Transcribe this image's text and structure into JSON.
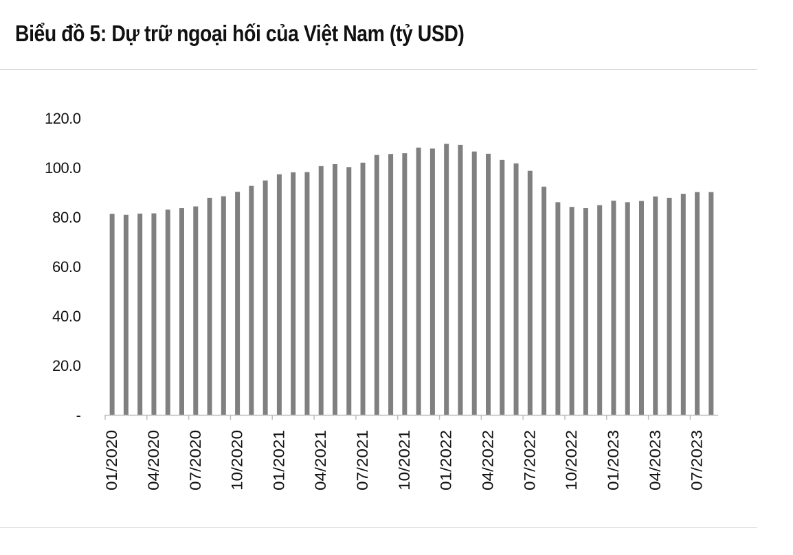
{
  "chart_data": {
    "type": "bar",
    "title": "Biểu đồ 5: Dự trữ ngoại hối của Việt Nam (tỷ USD)",
    "xlabel": "",
    "ylabel": "",
    "ylim": [
      0,
      120
    ],
    "yticks": [
      {
        "value": 0,
        "label": "-"
      },
      {
        "value": 20,
        "label": "20.0"
      },
      {
        "value": 40,
        "label": "40.0"
      },
      {
        "value": 60,
        "label": "60.0"
      },
      {
        "value": 80,
        "label": "80.0"
      },
      {
        "value": 100,
        "label": "100.0"
      },
      {
        "value": 120,
        "label": "120.0"
      }
    ],
    "grid": false,
    "legend": "none",
    "bar_color": "#808080",
    "categories": [
      "01/2020",
      "02/2020",
      "03/2020",
      "04/2020",
      "05/2020",
      "06/2020",
      "07/2020",
      "08/2020",
      "09/2020",
      "10/2020",
      "11/2020",
      "12/2020",
      "01/2021",
      "02/2021",
      "03/2021",
      "04/2021",
      "05/2021",
      "06/2021",
      "07/2021",
      "08/2021",
      "09/2021",
      "10/2021",
      "11/2021",
      "12/2021",
      "01/2022",
      "02/2022",
      "03/2022",
      "04/2022",
      "05/2022",
      "06/2022",
      "07/2022",
      "08/2022",
      "09/2022",
      "10/2022",
      "11/2022",
      "12/2022",
      "01/2023",
      "02/2023",
      "03/2023",
      "04/2023",
      "05/2023",
      "06/2023",
      "07/2023",
      "08/2023"
    ],
    "values": [
      81.3,
      80.9,
      81.4,
      81.5,
      83.0,
      83.6,
      84.3,
      87.8,
      88.4,
      90.2,
      92.6,
      94.8,
      97.3,
      98.1,
      98.2,
      100.6,
      101.4,
      100.2,
      102.0,
      105.1,
      105.5,
      105.8,
      108.1,
      107.7,
      109.6,
      109.2,
      106.5,
      105.6,
      103.1,
      101.7,
      98.7,
      92.3,
      86.0,
      84.1,
      83.6,
      84.8,
      86.6,
      86.0,
      86.5,
      88.3,
      87.8,
      89.4,
      90.1,
      90.1
    ],
    "x_tick_labels": [
      "01/2020",
      "04/2020",
      "07/2020",
      "10/2020",
      "01/2021",
      "04/2021",
      "07/2021",
      "10/2021",
      "01/2022",
      "04/2022",
      "07/2022",
      "10/2022",
      "01/2023",
      "04/2023",
      "07/2023"
    ]
  }
}
